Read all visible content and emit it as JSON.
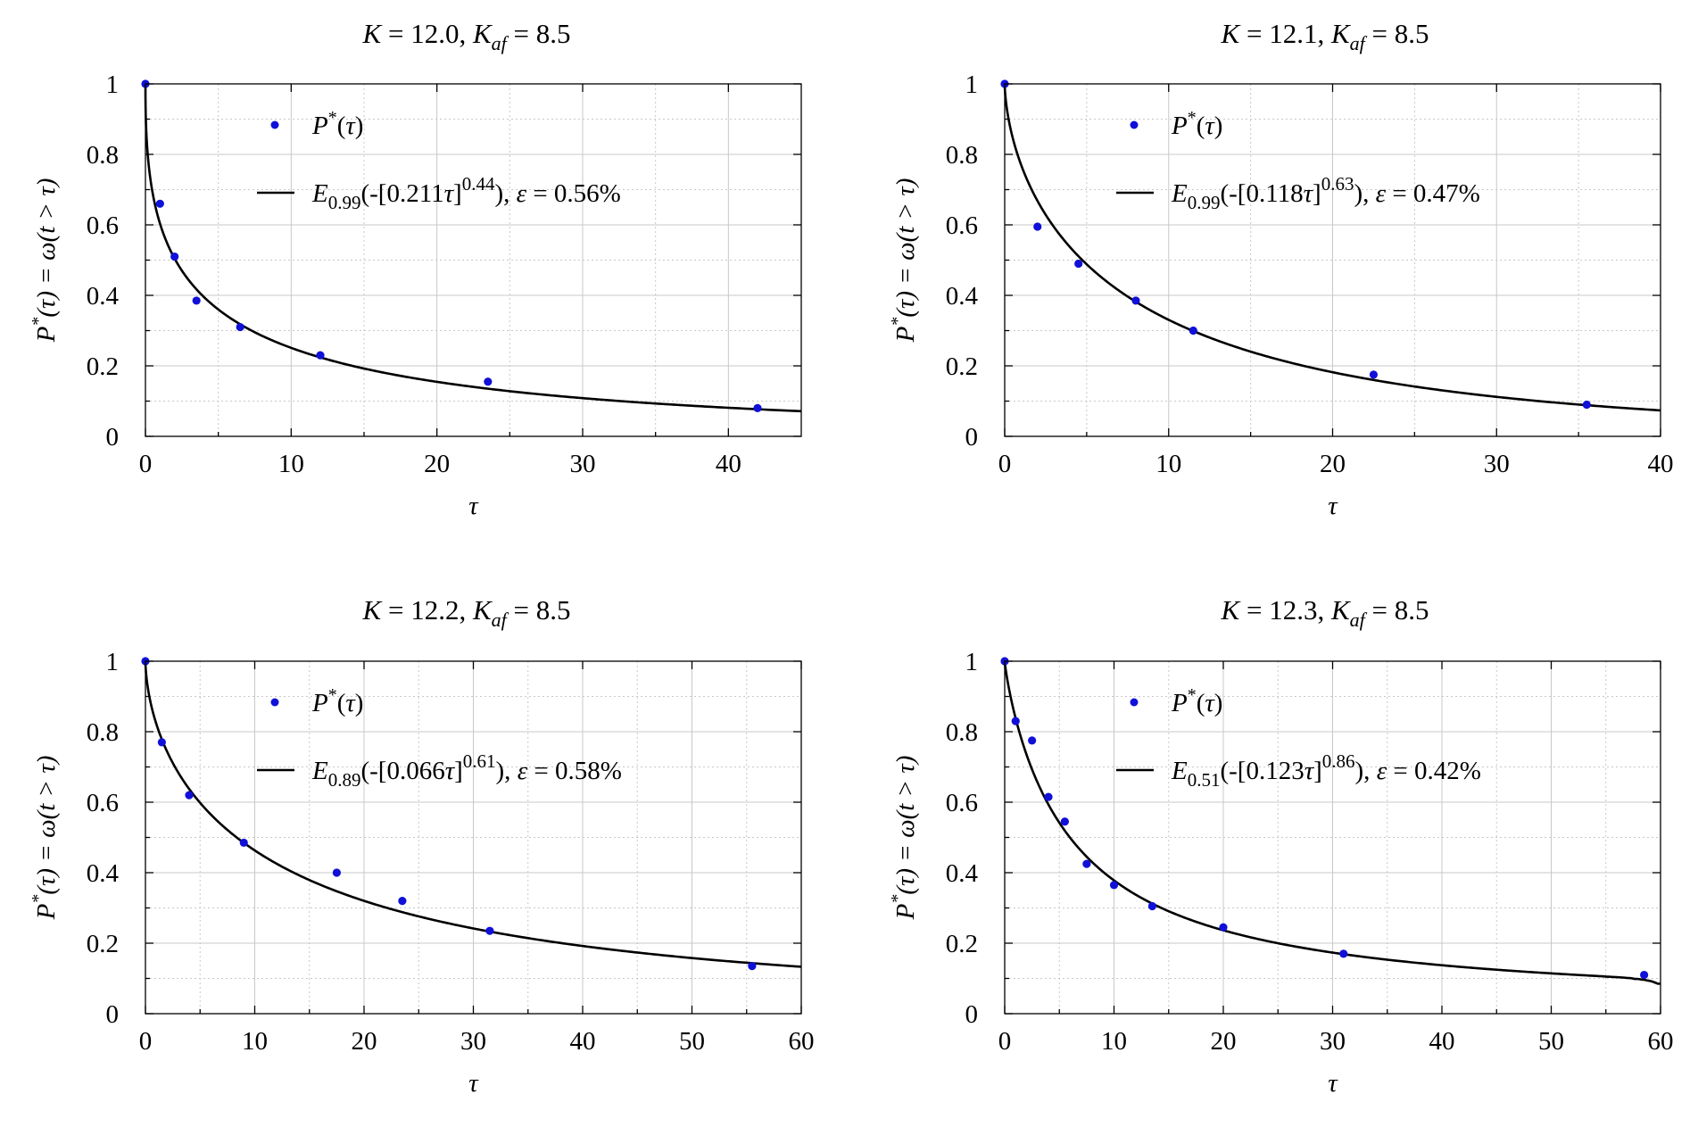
{
  "chart_data": [
    {
      "type": "scatter",
      "title": {
        "K": "12.0",
        "Kaf": "8.5"
      },
      "xlabel": "τ",
      "ylabel": "P*(τ) = ω(t > τ)",
      "xlim": [
        0,
        45
      ],
      "ylim": [
        0,
        1
      ],
      "xticks": [
        "0",
        "10",
        "20",
        "30",
        "40"
      ],
      "yticks": [
        "0",
        "0.2",
        "0.4",
        "0.6",
        "0.8",
        "1"
      ],
      "grid": true,
      "legend_position": "top-right",
      "series": [
        {
          "name": "P*(τ)",
          "kind": "points",
          "color": "#1010d8",
          "x": [
            0,
            1,
            2,
            3.5,
            6.5,
            12,
            23.5,
            42
          ],
          "y": [
            1.0,
            0.66,
            0.51,
            0.385,
            0.31,
            0.23,
            0.155,
            0.08
          ]
        },
        {
          "name": "E0.99(-[0.211τ]^0.44), ε = 0.56%",
          "kind": "line",
          "color": "#000000",
          "fit": {
            "a": 0.99,
            "c": 0.211,
            "p": 0.44
          }
        }
      ],
      "legend": {
        "points_label": "P*(τ)",
        "fit": {
          "a": "0.99",
          "c": "0.211",
          "p": "0.44",
          "eps": "0.56%"
        }
      }
    },
    {
      "type": "scatter",
      "title": {
        "K": "12.1",
        "Kaf": "8.5"
      },
      "xlabel": "τ",
      "ylabel": "P*(τ) = ω(t > τ)",
      "xlim": [
        0,
        40
      ],
      "ylim": [
        0,
        1
      ],
      "xticks": [
        "0",
        "10",
        "20",
        "30",
        "40"
      ],
      "yticks": [
        "0",
        "0.2",
        "0.4",
        "0.6",
        "0.8",
        "1"
      ],
      "grid": true,
      "legend_position": "top-right",
      "series": [
        {
          "name": "P*(τ)",
          "kind": "points",
          "color": "#1010d8",
          "x": [
            0,
            2,
            4.5,
            8,
            11.5,
            22.5,
            35.5
          ],
          "y": [
            1.0,
            0.595,
            0.49,
            0.385,
            0.3,
            0.175,
            0.09
          ]
        },
        {
          "name": "E0.99(-[0.118τ]^0.63), ε = 0.47%",
          "kind": "line",
          "color": "#000000",
          "fit": {
            "a": 0.99,
            "c": 0.118,
            "p": 0.63
          }
        }
      ],
      "legend": {
        "points_label": "P*(τ)",
        "fit": {
          "a": "0.99",
          "c": "0.118",
          "p": "0.63",
          "eps": "0.47%"
        }
      }
    },
    {
      "type": "scatter",
      "title": {
        "K": "12.2",
        "Kaf": "8.5"
      },
      "xlabel": "τ",
      "ylabel": "P*(τ) = ω(t > τ)",
      "xlim": [
        0,
        60
      ],
      "ylim": [
        0,
        1
      ],
      "xticks": [
        "0",
        "10",
        "20",
        "30",
        "40",
        "50",
        "60"
      ],
      "yticks": [
        "0",
        "0.2",
        "0.4",
        "0.6",
        "0.8",
        "1"
      ],
      "grid": true,
      "legend_position": "top-right",
      "series": [
        {
          "name": "P*(τ)",
          "kind": "points",
          "color": "#1010d8",
          "x": [
            0,
            1.5,
            4,
            9,
            17.5,
            23.5,
            31.5,
            55.5
          ],
          "y": [
            1.0,
            0.77,
            0.62,
            0.485,
            0.4,
            0.32,
            0.235,
            0.135
          ]
        },
        {
          "name": "E0.89(-[0.066τ]^0.61), ε = 0.58%",
          "kind": "line",
          "color": "#000000",
          "fit": {
            "a": 0.89,
            "c": 0.066,
            "p": 0.61
          }
        }
      ],
      "legend": {
        "points_label": "P*(τ)",
        "fit": {
          "a": "0.89",
          "c": "0.066",
          "p": "0.61",
          "eps": "0.58%"
        }
      }
    },
    {
      "type": "scatter",
      "title": {
        "K": "12.3",
        "Kaf": "8.5"
      },
      "xlabel": "τ",
      "ylabel": "P*(τ) = ω(t > τ)",
      "xlim": [
        0,
        60
      ],
      "ylim": [
        0,
        1
      ],
      "xticks": [
        "0",
        "10",
        "20",
        "30",
        "40",
        "50",
        "60"
      ],
      "yticks": [
        "0",
        "0.2",
        "0.4",
        "0.6",
        "0.8",
        "1"
      ],
      "grid": true,
      "legend_position": "top-right",
      "series": [
        {
          "name": "P*(τ)",
          "kind": "points",
          "color": "#1010d8",
          "x": [
            0,
            1,
            2.5,
            4,
            5.5,
            7.5,
            10,
            13.5,
            20,
            31,
            58.5
          ],
          "y": [
            1.0,
            0.83,
            0.775,
            0.615,
            0.545,
            0.425,
            0.365,
            0.305,
            0.245,
            0.17,
            0.11
          ]
        },
        {
          "name": "E0.51(-[0.123τ]^0.86), ε = 0.42%",
          "kind": "line",
          "color": "#000000",
          "fit": {
            "a": 0.51,
            "c": 0.123,
            "p": 0.86
          }
        }
      ],
      "legend": {
        "points_label": "P*(τ)",
        "fit": {
          "a": "0.51",
          "c": "0.123",
          "p": "0.86",
          "eps": "0.42%"
        }
      }
    }
  ]
}
